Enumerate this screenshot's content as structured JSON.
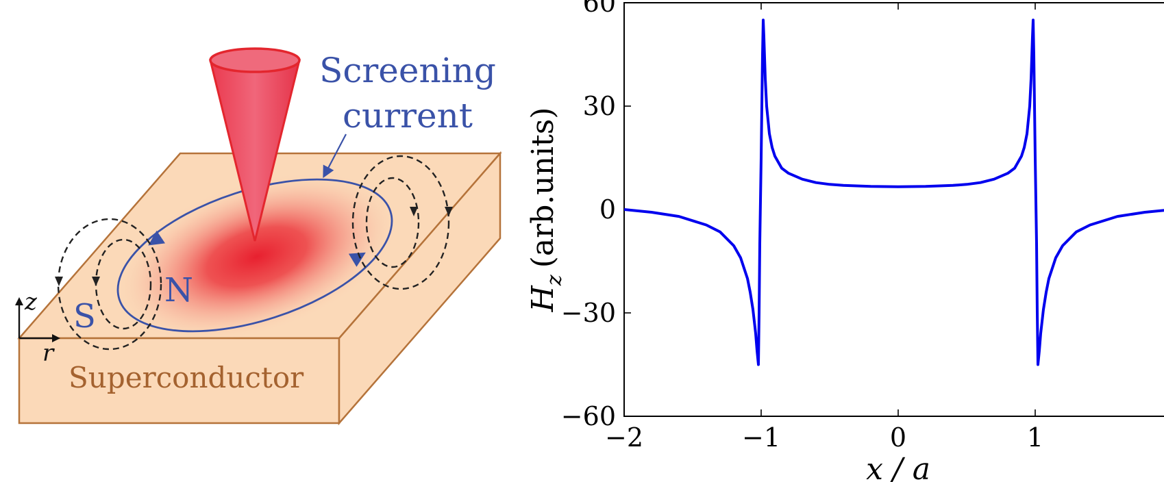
{
  "illustration": {
    "label_screening_line1": "Screening",
    "label_screening_line2": "current",
    "label_superconductor": "Superconductor",
    "label_N": "N",
    "label_S": "S",
    "axis_z": "z",
    "axis_r": "r",
    "colors": {
      "slab_face": "#fbd9b8",
      "slab_edge": "#b5733a",
      "tip": "#ee3f55",
      "tip_edge": "#e3262e",
      "current": "#3a52a8",
      "field_lines": "#222222",
      "label_blue": "#3a52a8",
      "label_brown": "#a4622f"
    }
  },
  "chart_data": {
    "type": "line",
    "ylabel_symbol": "H",
    "ylabel_subscript": "z",
    "ylabel_units": "(arb.units)",
    "xlabel": "x / a",
    "xlim": [
      -2,
      2
    ],
    "ylim": [
      -60,
      60
    ],
    "xticks": [
      -2,
      -1,
      0,
      1
    ],
    "xtick_labels": [
      "−2",
      "−1",
      "0",
      "1"
    ],
    "yticks": [
      -60,
      -30,
      0,
      30,
      60
    ],
    "ytick_labels": [
      "−60",
      "−30",
      "0",
      "30",
      "60"
    ],
    "line_color": "#0000ee",
    "series": [
      {
        "x": [
          -2.0,
          -1.8,
          -1.6,
          -1.4,
          -1.3,
          -1.2,
          -1.15,
          -1.1,
          -1.08,
          -1.06,
          -1.04,
          -1.03,
          -1.02,
          -1.015,
          -1.01,
          -1.0,
          -0.99,
          -0.985,
          -0.98,
          -0.97,
          -0.96,
          -0.94,
          -0.92,
          -0.9,
          -0.85,
          -0.8,
          -0.7,
          -0.6,
          -0.5,
          -0.4,
          -0.2,
          0.0,
          0.2,
          0.4,
          0.5,
          0.6,
          0.7,
          0.8,
          0.85,
          0.9,
          0.92,
          0.94,
          0.96,
          0.97,
          0.98,
          0.985,
          0.99,
          1.0,
          1.01,
          1.015,
          1.02,
          1.03,
          1.04,
          1.06,
          1.08,
          1.1,
          1.15,
          1.2,
          1.3,
          1.4,
          1.6,
          1.8,
          2.0
        ],
        "y": [
          0.0,
          -0.8,
          -2.0,
          -4.5,
          -6.5,
          -10.5,
          -14.0,
          -20.0,
          -24.0,
          -29.0,
          -36.0,
          -41.0,
          -45.0,
          -30.0,
          -10.0,
          15.0,
          45.0,
          55.0,
          50.0,
          38.0,
          30.0,
          22.0,
          18.0,
          15.5,
          12.0,
          10.5,
          8.8,
          7.8,
          7.3,
          7.0,
          6.7,
          6.6,
          6.7,
          7.0,
          7.3,
          7.8,
          8.8,
          10.5,
          12.0,
          15.5,
          18.0,
          22.0,
          30.0,
          38.0,
          50.0,
          55.0,
          45.0,
          15.0,
          -10.0,
          -30.0,
          -45.0,
          -41.0,
          -36.0,
          -29.0,
          -24.0,
          -20.0,
          -14.0,
          -10.5,
          -6.5,
          -4.5,
          -2.0,
          -0.8,
          0.0
        ]
      }
    ]
  }
}
